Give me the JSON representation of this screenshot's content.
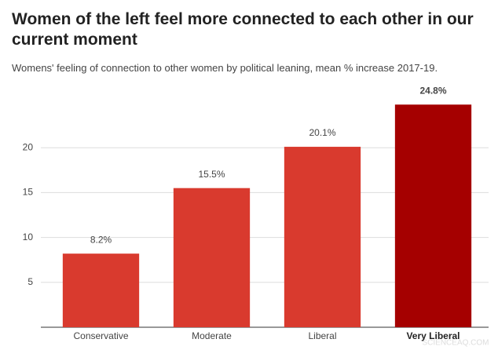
{
  "chart_data": {
    "type": "bar",
    "title": "Women of the left feel more connected to each other in our current moment",
    "subtitle": "Womens' feeling of connection to other women by political leaning, mean % increase 2017-19.",
    "categories": [
      "Conservative",
      "Moderate",
      "Liberal",
      "Very Liberal"
    ],
    "values": [
      8.2,
      15.5,
      20.1,
      24.8
    ],
    "value_labels": [
      "8.2%",
      "15.5%",
      "20.1%",
      "24.8%"
    ],
    "colors": [
      "#d93a2e",
      "#d93a2e",
      "#d93a2e",
      "#a50000"
    ],
    "ylim": [
      0,
      25
    ],
    "yticks": [
      5,
      10,
      15,
      20
    ],
    "grid": true,
    "watermark": "SCIENCEAQ.COM"
  }
}
